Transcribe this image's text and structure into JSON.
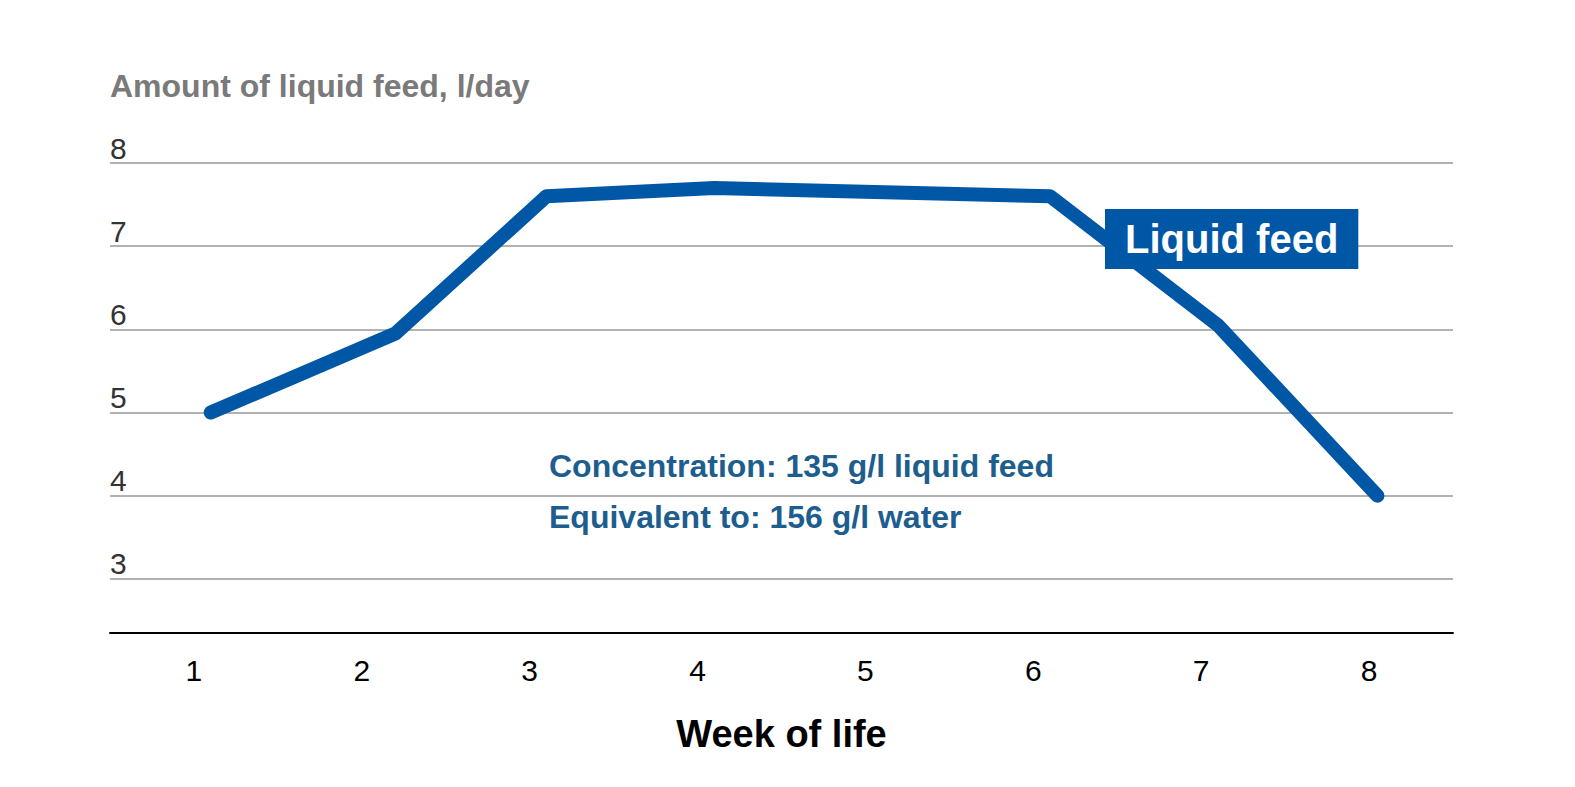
{
  "chart_data": {
    "type": "line",
    "y_label": "Amount of liquid feed, l/day",
    "x_label": "Week of life",
    "x": [
      1.1,
      2.2,
      3.1,
      4.1,
      6.1,
      7.1,
      8.05
    ],
    "series": [
      {
        "name": "Liquid feed",
        "color": "#0057a5",
        "values": [
          5,
          5.95,
          7.6,
          7.7,
          7.6,
          6.05,
          4
        ]
      }
    ],
    "xlim": [
      0.5,
      8.5
    ],
    "xticks": [
      1,
      2,
      3,
      4,
      5,
      6,
      7,
      8
    ],
    "ylim": [
      2.35,
      8
    ],
    "yticks": [
      3,
      4,
      5,
      6,
      7,
      8
    ],
    "grid": true,
    "annotations": [
      "Concentration: 135 g/l liquid feed",
      "Equivalent to: 156 g/l water"
    ]
  }
}
